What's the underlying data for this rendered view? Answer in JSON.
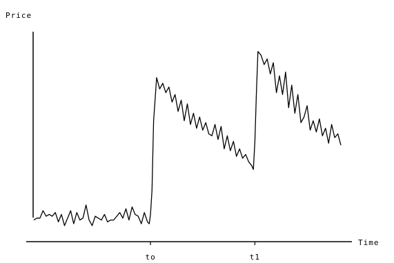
{
  "chart_data": {
    "type": "line",
    "title": "",
    "xlabel": "Time",
    "ylabel": "Price",
    "x_ticks": [
      {
        "label": "to",
        "x": 38
      },
      {
        "label": "t1",
        "x": 72
      }
    ],
    "xlim": [
      0,
      100
    ],
    "ylim": [
      0,
      100
    ],
    "grid": false,
    "legend": "none",
    "series": [
      {
        "name": "",
        "color": "#000000",
        "x": [
          0,
          1,
          2,
          3,
          4,
          5,
          6,
          7,
          8,
          9,
          10,
          11,
          12,
          13,
          14,
          15,
          16,
          17,
          18,
          19,
          20,
          21,
          22,
          23,
          24,
          25,
          26,
          27,
          28,
          29,
          30,
          31,
          32,
          33,
          34,
          35,
          36,
          37,
          37.6,
          38,
          38.5,
          39,
          40,
          41,
          42,
          43,
          44,
          45,
          46,
          47,
          48,
          49,
          50,
          51,
          52,
          53,
          54,
          55,
          56,
          57,
          58,
          59,
          60,
          61,
          62,
          63,
          64,
          65,
          66,
          67,
          68,
          69,
          70,
          71,
          71.5,
          72,
          72.5,
          73,
          74,
          75,
          76,
          77,
          78,
          79,
          80,
          81,
          82,
          83,
          84,
          85,
          86,
          87,
          88,
          89,
          90,
          91,
          92,
          93,
          94,
          95,
          96,
          97,
          98,
          99,
          100
        ],
        "y": [
          2,
          3,
          3,
          7,
          4,
          5,
          4,
          6,
          1,
          5,
          -1,
          3,
          7,
          0,
          6,
          2,
          3,
          10,
          2,
          -1,
          4,
          3,
          2,
          5,
          1,
          2,
          2,
          4,
          6,
          3,
          8,
          2,
          9,
          5,
          4,
          0,
          6,
          1,
          0,
          5,
          18,
          55,
          78,
          72,
          75,
          70,
          73,
          65,
          69,
          60,
          66,
          55,
          64,
          53,
          59,
          51,
          57,
          50,
          54,
          48,
          47,
          53,
          45,
          52,
          40,
          47,
          39,
          44,
          36,
          40,
          35,
          37,
          33,
          31,
          29,
          44,
          70,
          92,
          90,
          85,
          88,
          80,
          86,
          70,
          79,
          69,
          81,
          62,
          74,
          59,
          69,
          54,
          57,
          63,
          50,
          55,
          49,
          56,
          47,
          51,
          43,
          53,
          46,
          48,
          42
        ]
      }
    ]
  }
}
